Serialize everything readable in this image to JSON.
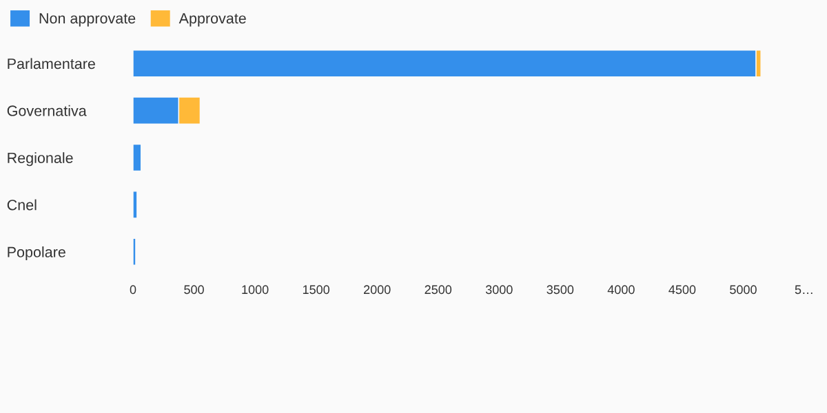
{
  "chart_data": {
    "type": "bar",
    "orientation": "horizontal",
    "stacked": true,
    "categories": [
      "Parlamentare",
      "Governativa",
      "Regionale",
      "Cnel",
      "Popolare"
    ],
    "series": [
      {
        "name": "Non approvate",
        "color": "#348feb",
        "values": [
          5105,
          375,
          66,
          33,
          22
        ]
      },
      {
        "name": "Approvate",
        "color": "#ffb938",
        "values": [
          40,
          175,
          0,
          0,
          0
        ]
      }
    ],
    "xlim": [
      0,
      5500
    ],
    "xticks": [
      0,
      500,
      1000,
      1500,
      2000,
      2500,
      3000,
      3500,
      4000,
      4500,
      5000,
      {
        "value": 5500,
        "label": "5…"
      }
    ],
    "grid": false,
    "legend": "top left"
  }
}
